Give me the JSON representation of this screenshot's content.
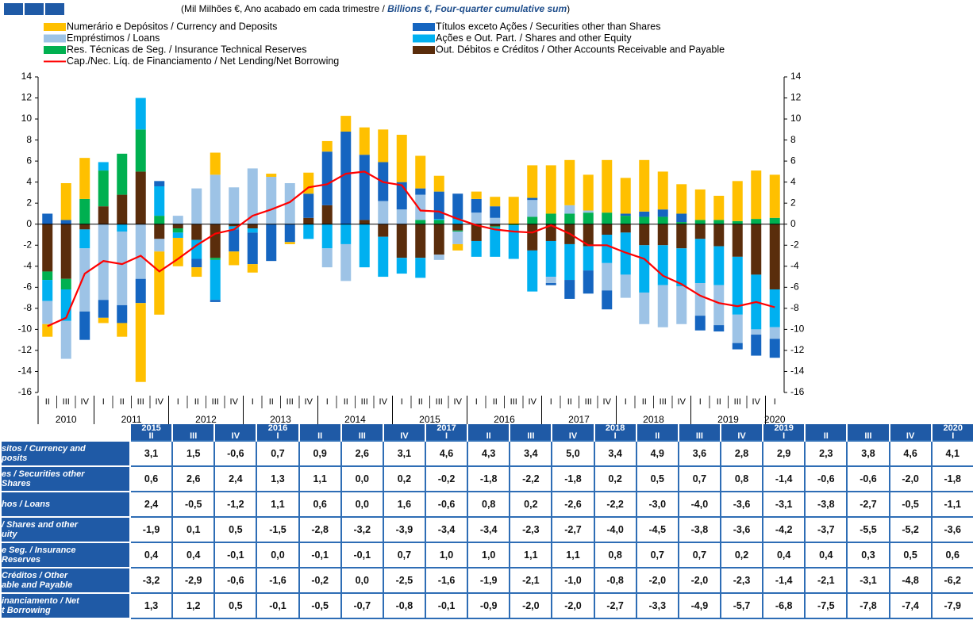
{
  "chart_data": {
    "type": "bar",
    "stacked": true,
    "subtitle": [
      "(Mil Milhões €, Ano acabado em cada trimestre / ",
      "Billions €, Four-quarter cumulative sum",
      ")"
    ],
    "categories": [
      "II",
      "III",
      "IV",
      "I",
      "II",
      "III",
      "IV",
      "I",
      "II",
      "III",
      "IV",
      "I",
      "II",
      "III",
      "IV",
      "I",
      "II",
      "III",
      "IV",
      "I",
      "II",
      "III",
      "IV",
      "I",
      "II",
      "III",
      "IV",
      "I",
      "II",
      "III",
      "IV",
      "I",
      "II",
      "III",
      "IV",
      "I",
      "II",
      "III",
      "IV",
      "I"
    ],
    "year_labels": [
      "2010",
      "2011",
      "2012",
      "2013",
      "2014",
      "2015",
      "2016",
      "2017",
      "2018",
      "2019",
      "2020"
    ],
    "ylim": [
      -16,
      14
    ],
    "yticks": [
      -16,
      -14,
      -12,
      -10,
      -8,
      -6,
      -4,
      -2,
      0,
      2,
      4,
      6,
      8,
      10,
      12,
      14
    ],
    "series": [
      {
        "name": "Numerário e Depósitos / Currency and Deposits",
        "color": "#ffc000",
        "values": [
          -1.2,
          3.5,
          3.9,
          -0.5,
          -1.3,
          -7.5,
          -6.0,
          -2.7,
          -0.9,
          2.1,
          -1.3,
          -0.8,
          0.3,
          -0.2,
          2.0,
          1.0,
          1.5,
          2.6,
          3.1,
          4.5,
          3.1,
          1.5,
          -0.6,
          0.7,
          0.9,
          2.6,
          3.1,
          4.6,
          4.3,
          3.4,
          5.0,
          3.4,
          4.9,
          3.6,
          2.8,
          2.9,
          2.3,
          3.8,
          4.6,
          4.1
        ]
      },
      {
        "name": "Títulos exceto Ações / Securities other than Shares",
        "color": "#1565c0",
        "values": [
          1.0,
          0.4,
          -2.7,
          -1.7,
          -1.7,
          -2.3,
          0.5,
          0.0,
          -0.8,
          -0.2,
          -2.1,
          -3.0,
          -3.5,
          -1.7,
          2.3,
          5.1,
          8.8,
          6.2,
          3.7,
          2.6,
          0.6,
          2.6,
          2.4,
          1.3,
          1.1,
          0.0,
          0.2,
          -0.2,
          -1.8,
          -2.2,
          -1.8,
          0.2,
          0.5,
          0.7,
          0.8,
          -1.4,
          -0.6,
          -0.6,
          -2.0,
          -1.8
        ]
      },
      {
        "name": "Empréstimos / Loans",
        "color": "#9dc3e6",
        "values": [
          -2.2,
          -3.6,
          -6.0,
          -7.2,
          -7.0,
          -5.2,
          -1.2,
          0.8,
          3.4,
          4.7,
          3.5,
          5.3,
          4.5,
          3.9,
          0.0,
          -1.8,
          -3.5,
          0.0,
          2.2,
          1.4,
          2.4,
          -0.5,
          -1.2,
          1.1,
          0.6,
          0.0,
          1.6,
          -0.6,
          0.8,
          0.2,
          -2.6,
          -2.2,
          -3.0,
          -4.0,
          -3.6,
          -3.1,
          -3.8,
          -2.7,
          -0.5,
          -1.1
        ]
      },
      {
        "name": "Ações e Out. Part. / Shares and other Equity",
        "color": "#00b0f0",
        "values": [
          -2.0,
          -3.0,
          -1.8,
          0.8,
          -0.7,
          3.0,
          2.8,
          -0.5,
          -1.8,
          -3.8,
          -0.3,
          -0.4,
          0.0,
          0.0,
          -1.4,
          -2.3,
          -1.9,
          -4.1,
          -3.8,
          -1.5,
          -1.9,
          0.1,
          0.5,
          -1.5,
          -2.8,
          -3.2,
          -3.9,
          -3.4,
          -3.4,
          -2.3,
          -2.7,
          -4.0,
          -4.5,
          -3.8,
          -3.6,
          -4.2,
          -3.7,
          -5.5,
          -5.2,
          -3.6
        ]
      },
      {
        "name": "Res. Técnicas de Seg. / Insurance Technical Reserves",
        "color": "#00b050",
        "values": [
          -0.8,
          -1.0,
          2.4,
          3.4,
          3.9,
          4.0,
          0.8,
          -0.4,
          0.0,
          -0.2,
          0.0,
          0.0,
          0.0,
          0.0,
          0.0,
          0.0,
          0.0,
          0.0,
          0.0,
          0.0,
          0.4,
          0.4,
          -0.1,
          0.0,
          -0.1,
          -0.1,
          0.7,
          1.0,
          1.0,
          1.1,
          1.1,
          0.8,
          0.7,
          0.7,
          0.2,
          0.4,
          0.4,
          0.3,
          0.5,
          0.6
        ]
      },
      {
        "name": "Out. Débitos e Créditos / Other Accounts Receivable and Payable",
        "color": "#5a2d0c",
        "values": [
          -4.5,
          -5.2,
          -0.5,
          1.7,
          2.8,
          5.0,
          -1.4,
          -0.4,
          -1.5,
          -3.2,
          -0.2,
          -0.4,
          0.0,
          0.0,
          0.6,
          1.8,
          0.0,
          0.4,
          -1.2,
          -3.2,
          -3.2,
          -2.9,
          -0.6,
          -1.6,
          -0.2,
          0.0,
          -2.5,
          -1.6,
          -1.9,
          -2.1,
          -1.0,
          -0.8,
          -2.0,
          -2.0,
          -2.3,
          -1.4,
          -2.1,
          -3.1,
          -4.8,
          -6.2
        ]
      },
      {
        "name": "Cap./Nec. Líq. de Financiamento / Net Lending/Net Borrowing",
        "color": "#ff0000",
        "type": "line",
        "values": [
          -9.7,
          -8.9,
          -4.7,
          -3.5,
          -3.8,
          -3.0,
          -4.5,
          -3.3,
          -2.0,
          -0.9,
          -0.5,
          0.8,
          1.4,
          2.1,
          3.5,
          3.8,
          4.8,
          5.0,
          4.0,
          3.7,
          1.3,
          1.2,
          0.5,
          -0.1,
          -0.5,
          -0.7,
          -0.8,
          -0.1,
          -0.9,
          -2.0,
          -2.0,
          -2.7,
          -3.3,
          -4.9,
          -5.7,
          -6.8,
          -7.5,
          -7.8,
          -7.4,
          -7.9
        ]
      }
    ]
  },
  "table": {
    "years": [
      "2015",
      null,
      null,
      "2016",
      null,
      null,
      null,
      "2017",
      null,
      null,
      null,
      "2018",
      null,
      null,
      null,
      "2019",
      null,
      null,
      null,
      "2020"
    ],
    "quarters": [
      "II",
      "III",
      "IV",
      "I",
      "II",
      "III",
      "IV",
      "I",
      "II",
      "III",
      "IV",
      "I",
      "II",
      "III",
      "IV",
      "I",
      "II",
      "III",
      "IV",
      "I"
    ],
    "rows": [
      {
        "label": [
          "sitos / Currency and",
          "posits"
        ],
        "values": [
          "3,1",
          "1,5",
          "-0,6",
          "0,7",
          "0,9",
          "2,6",
          "3,1",
          "4,6",
          "4,3",
          "3,4",
          "5,0",
          "3,4",
          "4,9",
          "3,6",
          "2,8",
          "2,9",
          "2,3",
          "3,8",
          "4,6",
          "4,1"
        ]
      },
      {
        "label": [
          "es / Securities other",
          "Shares"
        ],
        "values": [
          "0,6",
          "2,6",
          "2,4",
          "1,3",
          "1,1",
          "0,0",
          "0,2",
          "-0,2",
          "-1,8",
          "-2,2",
          "-1,8",
          "0,2",
          "0,5",
          "0,7",
          "0,8",
          "-1,4",
          "-0,6",
          "-0,6",
          "-2,0",
          "-1,8"
        ]
      },
      {
        "label": [
          "hos / Loans"
        ],
        "values": [
          "2,4",
          "-0,5",
          "-1,2",
          "1,1",
          "0,6",
          "0,0",
          "1,6",
          "-0,6",
          "0,8",
          "0,2",
          "-2,6",
          "-2,2",
          "-3,0",
          "-4,0",
          "-3,6",
          "-3,1",
          "-3,8",
          "-2,7",
          "-0,5",
          "-1,1"
        ]
      },
      {
        "label": [
          "/ Shares and other",
          "uity"
        ],
        "values": [
          "-1,9",
          "0,1",
          "0,5",
          "-1,5",
          "-2,8",
          "-3,2",
          "-3,9",
          "-3,4",
          "-3,4",
          "-2,3",
          "-2,7",
          "-4,0",
          "-4,5",
          "-3,8",
          "-3,6",
          "-4,2",
          "-3,7",
          "-5,5",
          "-5,2",
          "-3,6"
        ]
      },
      {
        "label": [
          "e Seg. / Insurance",
          "Reserves"
        ],
        "values": [
          "0,4",
          "0,4",
          "-0,1",
          "0,0",
          "-0,1",
          "-0,1",
          "0,7",
          "1,0",
          "1,0",
          "1,1",
          "1,1",
          "0,8",
          "0,7",
          "0,7",
          "0,2",
          "0,4",
          "0,4",
          "0,3",
          "0,5",
          "0,6"
        ]
      },
      {
        "label": [
          "Créditos / Other",
          "able and Payable"
        ],
        "values": [
          "-3,2",
          "-2,9",
          "-0,6",
          "-1,6",
          "-0,2",
          "0,0",
          "-2,5",
          "-1,6",
          "-1,9",
          "-2,1",
          "-1,0",
          "-0,8",
          "-2,0",
          "-2,0",
          "-2,3",
          "-1,4",
          "-2,1",
          "-3,1",
          "-4,8",
          "-6,2"
        ]
      },
      {
        "label": [
          "inanciamento / Net",
          "t Borrowing"
        ],
        "values": [
          "1,3",
          "1,2",
          "0,5",
          "-0,1",
          "-0,5",
          "-0,7",
          "-0,8",
          "-0,1",
          "-0,9",
          "-2,0",
          "-2,0",
          "-2,7",
          "-3,3",
          "-4,9",
          "-5,7",
          "-6,8",
          "-7,5",
          "-7,8",
          "-7,4",
          "-7,9"
        ]
      }
    ]
  }
}
